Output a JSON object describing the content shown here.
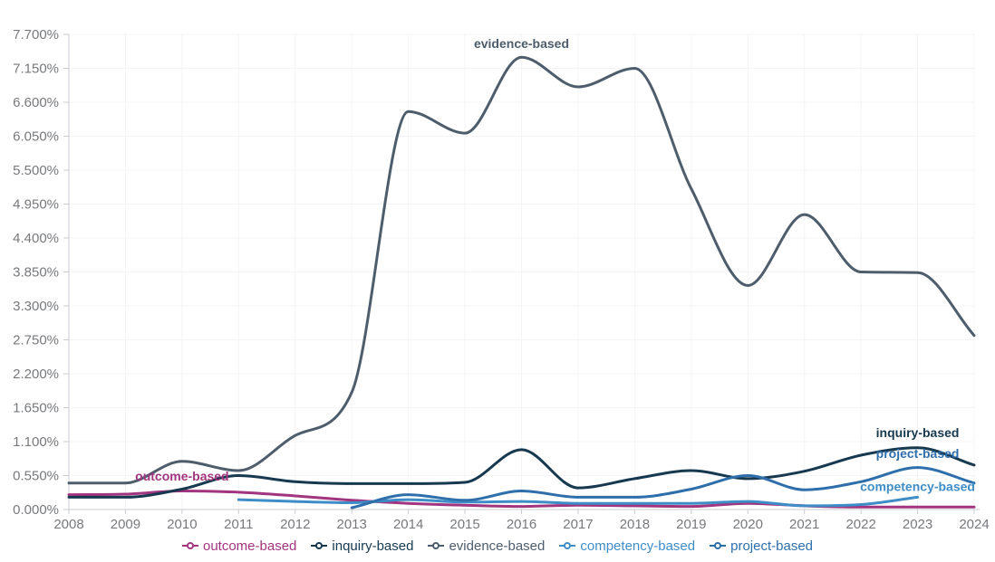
{
  "page": {
    "background": "#ffffff"
  },
  "chart_data": {
    "type": "line",
    "title": "",
    "xlabel": "",
    "ylabel": "",
    "x": [
      2008,
      2009,
      2010,
      2011,
      2012,
      2013,
      2014,
      2015,
      2016,
      2017,
      2018,
      2019,
      2020,
      2021,
      2022,
      2023,
      2024
    ],
    "xtick_labels": [
      "2008",
      "2009",
      "2010",
      "2011",
      "2012",
      "2013",
      "2014",
      "2015",
      "2016",
      "2017",
      "2018",
      "2019",
      "2020",
      "2021",
      "2022",
      "2023",
      "2024"
    ],
    "ylim": [
      0,
      7.7
    ],
    "ytick_step": 0.55,
    "ytick_labels": [
      "0.000%",
      "0.550%",
      "1.100%",
      "1.650%",
      "2.200%",
      "2.750%",
      "3.300%",
      "3.850%",
      "4.400%",
      "4.950%",
      "5.500%",
      "6.050%",
      "6.600%",
      "7.150%",
      "7.700%"
    ],
    "grid": true,
    "legend_position": "bottom",
    "axis_color": "#c9cbd0",
    "grid_color": "#f4f4f6",
    "tick_text_color": "#77797c",
    "series": [
      {
        "name": "outcome-based",
        "color": "#a2357f",
        "values": [
          0.24,
          0.25,
          0.3,
          0.28,
          0.22,
          0.15,
          0.1,
          0.07,
          0.05,
          0.07,
          0.06,
          0.05,
          0.1,
          0.06,
          0.04,
          0.04,
          0.04
        ]
      },
      {
        "name": "inquiry-based",
        "color": "#17394f",
        "values": [
          0.2,
          0.2,
          0.33,
          0.55,
          0.45,
          0.42,
          0.42,
          0.44,
          0.97,
          0.35,
          0.5,
          0.63,
          0.5,
          0.62,
          0.88,
          1.0,
          0.72
        ]
      },
      {
        "name": "evidence-based",
        "color": "#4d5d6c",
        "values": [
          0.43,
          0.43,
          0.78,
          0.63,
          1.2,
          1.9,
          6.45,
          6.1,
          7.33,
          6.85,
          7.15,
          5.2,
          3.63,
          4.78,
          3.85,
          3.84,
          2.82
        ]
      },
      {
        "name": "competency-based",
        "color": "#3f8dc6",
        "values": [
          null,
          null,
          null,
          0.16,
          0.13,
          0.11,
          0.16,
          0.12,
          0.13,
          0.1,
          0.1,
          0.1,
          0.13,
          0.06,
          0.08,
          0.2,
          null
        ]
      },
      {
        "name": "project-based",
        "color": "#2e6fab",
        "values": [
          null,
          null,
          null,
          null,
          null,
          0.03,
          0.24,
          0.15,
          0.3,
          0.2,
          0.2,
          0.33,
          0.55,
          0.32,
          0.45,
          0.68,
          0.43
        ]
      }
    ],
    "annotations": [
      {
        "text": "evidence-based",
        "x": 2016,
        "y": 7.55,
        "color": "#4d5d6c"
      },
      {
        "text": "outcome-based",
        "x": 2010,
        "y": 0.54,
        "color": "#a2357f"
      },
      {
        "text": "inquiry-based",
        "x": 2023,
        "y": 1.25,
        "color": "#17394f"
      },
      {
        "text": "project-based",
        "x": 2023,
        "y": 0.91,
        "color": "#2e6fab"
      },
      {
        "text": "competency-based",
        "x": 2023,
        "y": 0.375,
        "color": "#3f8dc6"
      }
    ]
  },
  "legend": {
    "items": [
      {
        "label": "outcome-based",
        "color": "#a2357f"
      },
      {
        "label": "inquiry-based",
        "color": "#17394f"
      },
      {
        "label": "evidence-based",
        "color": "#4d5d6c"
      },
      {
        "label": "competency-based",
        "color": "#3f8dc6"
      },
      {
        "label": "project-based",
        "color": "#2e6fab"
      }
    ]
  }
}
